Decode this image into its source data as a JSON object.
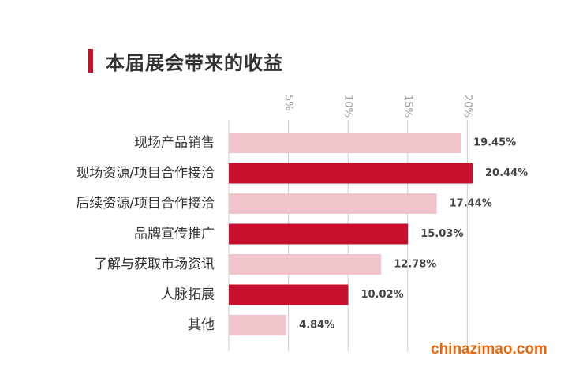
{
  "title": "本届展会带来的收益",
  "watermark": "chinazimao.com",
  "colors": {
    "accent": "#c8102e",
    "light_bar": "#f1c4cb",
    "grid": "#cccccc",
    "text": "#333333"
  },
  "chart_data": {
    "type": "bar",
    "orientation": "horizontal",
    "title": "本届展会带来的收益",
    "categories": [
      "现场产品销售",
      "现场资源/项目合作接洽",
      "后续资源/项目合作接洽",
      "品牌宣传推广",
      "了解与获取市场资讯",
      "人脉拓展",
      "其他"
    ],
    "values": [
      19.45,
      20.44,
      17.44,
      15.03,
      12.78,
      10.02,
      4.84
    ],
    "value_labels": [
      "19.45%",
      "20.44%",
      "17.44%",
      "15.03%",
      "12.78%",
      "10.02%",
      "4.84%"
    ],
    "bar_colors": [
      "#f1c4cb",
      "#c8102e",
      "#f1c4cb",
      "#c8102e",
      "#f1c4cb",
      "#c8102e",
      "#f1c4cb"
    ],
    "ticks": [
      5,
      10,
      15,
      20
    ],
    "tick_labels": [
      "5%",
      "10%",
      "15%",
      "20%"
    ],
    "xlim": [
      0,
      20.44
    ],
    "grid": true,
    "tick_label_rotation": "vertical"
  }
}
